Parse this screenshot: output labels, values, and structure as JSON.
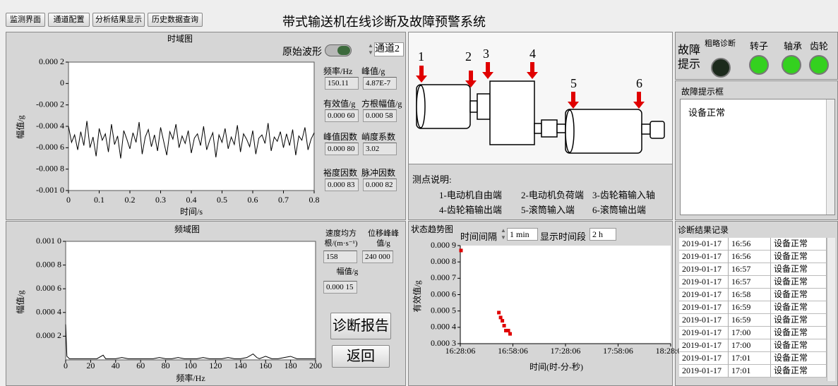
{
  "tabs": [
    "监测界面",
    "通道配置",
    "分析结果显示",
    "历史数据查询"
  ],
  "title": "带式输送机在线诊断及故障预警系统",
  "time_panel": {
    "toggle_label": "原始波形",
    "channel": "通道2",
    "indicators": [
      {
        "label": "频率/Hz",
        "value": "150.11"
      },
      {
        "label": "峰值/g",
        "value": "4.87E-7"
      },
      {
        "label": "有效值/g",
        "value": "0.000 60"
      },
      {
        "label": "方根幅值/g",
        "value": "0.000 58"
      },
      {
        "label": "峰值因数",
        "value": "0.000 80"
      },
      {
        "label": "峭度系数",
        "value": "3.02"
      },
      {
        "label": "裕度因数",
        "value": "0.000 83"
      },
      {
        "label": "脉冲因数",
        "value": "0.000 82"
      }
    ]
  },
  "freq_panel": {
    "indicators": [
      {
        "label": "速度均方根/(m·s⁻¹)",
        "value": "158"
      },
      {
        "label": "位移峰峰值/g",
        "value": "240 000"
      },
      {
        "label": "幅值/g",
        "value": "0.000 15"
      }
    ],
    "buttons": [
      "诊断报告",
      "返回"
    ]
  },
  "diagram": {
    "points": [
      "1",
      "2",
      "3",
      "4",
      "5",
      "6"
    ],
    "legend_title": "测点说明:",
    "legend": [
      "1-电动机自由端",
      "2-电动机负荷端",
      "3-齿轮箱输入轴",
      "4-齿轮箱输出端",
      "5-滚筒输入端",
      "6-滚筒输出端"
    ]
  },
  "trend_panel": {
    "interval_label": "时间间隔",
    "interval": "1 min",
    "period_label": "显示时间段",
    "period": "2 h"
  },
  "fault": {
    "title": "故障提示",
    "leds": [
      "粗略诊断",
      "转子",
      "轴承",
      "齿轮"
    ],
    "box_title": "故障提示框",
    "message": "设备正常"
  },
  "records": {
    "title": "诊断结果记录",
    "rows": [
      [
        "2019-01-17",
        "16:56",
        "设备正常"
      ],
      [
        "2019-01-17",
        "16:56",
        "设备正常"
      ],
      [
        "2019-01-17",
        "16:57",
        "设备正常"
      ],
      [
        "2019-01-17",
        "16:57",
        "设备正常"
      ],
      [
        "2019-01-17",
        "16:58",
        "设备正常"
      ],
      [
        "2019-01-17",
        "16:59",
        "设备正常"
      ],
      [
        "2019-01-17",
        "16:59",
        "设备正常"
      ],
      [
        "2019-01-17",
        "17:00",
        "设备正常"
      ],
      [
        "2019-01-17",
        "17:00",
        "设备正常"
      ],
      [
        "2019-01-17",
        "17:01",
        "设备正常"
      ],
      [
        "2019-01-17",
        "17:01",
        "设备正常"
      ]
    ]
  },
  "chart_data": [
    {
      "type": "line",
      "title": "时域图",
      "x_label": "时间/s",
      "y_label": "幅值/g",
      "x": [
        0,
        0.01,
        0.02,
        0.03,
        0.04,
        0.05,
        0.06,
        0.07,
        0.08,
        0.09,
        0.1,
        0.11,
        0.12,
        0.13,
        0.14,
        0.15,
        0.16,
        0.17,
        0.18,
        0.19,
        0.2,
        0.21,
        0.22,
        0.23,
        0.24,
        0.25,
        0.26,
        0.27,
        0.28,
        0.29,
        0.3,
        0.31,
        0.32,
        0.33,
        0.34,
        0.35,
        0.36,
        0.37,
        0.38,
        0.39,
        0.4,
        0.41,
        0.42,
        0.43,
        0.44,
        0.45,
        0.46,
        0.47,
        0.48,
        0.49,
        0.5,
        0.51,
        0.52,
        0.53,
        0.54,
        0.55,
        0.56,
        0.57,
        0.58,
        0.59,
        0.6,
        0.61,
        0.62,
        0.63,
        0.64,
        0.65,
        0.66,
        0.67,
        0.68,
        0.69,
        0.7,
        0.71,
        0.72,
        0.73,
        0.74,
        0.75,
        0.76,
        0.77,
        0.78,
        0.79,
        0.8
      ],
      "series": [
        {
          "color": "#000000",
          "values": [
            -0.0004,
            -0.00055,
            -0.00048,
            -0.00062,
            -0.00045,
            -0.00058,
            -0.00035,
            -0.0006,
            -0.0005,
            -0.00068,
            -0.00042,
            -0.00053,
            -0.00047,
            -0.00064,
            -0.00038,
            -0.00057,
            -0.00049,
            -0.0007,
            -0.00044,
            -0.00052,
            -0.00061,
            -0.00046,
            -0.00055,
            -0.00036,
            -0.00066,
            -0.0005,
            -0.00043,
            -0.00059,
            -0.00048,
            -0.00063,
            -0.00041,
            -0.00054,
            -0.00067,
            -0.00045,
            -0.00052,
            -0.00038,
            -0.0006,
            -0.00049,
            -0.00056,
            -0.00044,
            -0.00065,
            -0.00051,
            -0.00047,
            -0.00058,
            -0.0004,
            -0.00062,
            -0.00053,
            -0.00046,
            -0.00069,
            -0.00048,
            -0.00055,
            -0.00042,
            -0.00061,
            -0.0005,
            -0.00057,
            -0.00039,
            -0.00064,
            -0.00047,
            -0.00052,
            -0.00059,
            -0.00044,
            -0.00066,
            -0.00051,
            -0.00048,
            -0.00056,
            -0.00037,
            -0.00063,
            -0.0005,
            -0.00054,
            -0.00045,
            -0.0006,
            -0.00047,
            -0.00058,
            -0.00043,
            -0.00067,
            -0.00049,
            -0.00053,
            -0.00041,
            -0.00062,
            -0.00052,
            -0.00046
          ]
        }
      ],
      "xlim": [
        0,
        0.8
      ],
      "xticks": [
        0,
        0.1,
        0.2,
        0.3,
        0.4,
        0.5,
        0.6,
        0.7,
        0.8
      ],
      "ylim": [
        -0.001,
        0.0002
      ],
      "yticks": [
        {
          "value": 0.0002,
          "label": "0.000 2"
        },
        0,
        {
          "value": -0.0002,
          "label": "-0.000 2"
        },
        {
          "value": -0.0004,
          "label": "-0.000 4"
        },
        {
          "value": -0.0006,
          "label": "-0.000 6"
        },
        {
          "value": -0.0008,
          "label": "-0.000 8"
        },
        {
          "value": -0.001,
          "label": "-0.001 0"
        }
      ]
    },
    {
      "type": "line",
      "title": "频域图",
      "x_label": "频率/Hz",
      "y_label": "幅值/g",
      "x": [
        0,
        1,
        3,
        5,
        10,
        15,
        20,
        25,
        30,
        32,
        35,
        40,
        45,
        50,
        55,
        60,
        65,
        70,
        75,
        80,
        85,
        90,
        95,
        100,
        105,
        110,
        115,
        120,
        125,
        130,
        135,
        140,
        145,
        150,
        153,
        155,
        160,
        165,
        170,
        175,
        180,
        185,
        190,
        195,
        200
      ],
      "series": [
        {
          "color": "#000000",
          "values": [
            0.0003,
            3e-05,
            1e-05,
            1e-05,
            1e-05,
            1e-05,
            1e-05,
            1e-05,
            4e-05,
            1e-05,
            1e-05,
            1e-05,
            2e-05,
            1e-05,
            1e-05,
            1e-05,
            1e-05,
            1e-05,
            2e-05,
            1e-05,
            1e-05,
            2e-05,
            1e-05,
            1e-05,
            1e-05,
            2e-05,
            1e-05,
            1e-05,
            1e-05,
            2e-05,
            1e-05,
            1e-05,
            2e-05,
            5e-05,
            2e-05,
            1e-05,
            3e-05,
            1e-05,
            1e-05,
            2e-05,
            3e-05,
            1e-05,
            1e-05,
            1e-05,
            1e-05
          ]
        }
      ],
      "xlim": [
        0,
        200
      ],
      "xticks": [
        0,
        20,
        40,
        60,
        80,
        100,
        120,
        140,
        160,
        180,
        200
      ],
      "ylim": [
        0,
        0.001
      ],
      "yticks": [
        {
          "value": 0.001,
          "label": "0.001 0"
        },
        {
          "value": 0.0008,
          "label": "0.000 8"
        },
        {
          "value": 0.0006,
          "label": "0.000 6"
        },
        {
          "value": 0.0004,
          "label": "0.000 4"
        },
        {
          "value": 0.0002,
          "label": "0.000 2"
        }
      ]
    },
    {
      "type": "scatter",
      "title": "状态趋势图",
      "x_label": "时间(时-分-秒)",
      "y_label": "有效值/g",
      "x": [
        "16:28:30",
        "16:50:06",
        "16:51:06",
        "16:52:06",
        "16:53:06",
        "16:54:06",
        "16:55:30",
        "16:56:30"
      ],
      "series": [
        {
          "color": "#e00000",
          "values": [
            0.00087,
            0.00049,
            0.00046,
            0.00044,
            0.00041,
            0.00038,
            0.00038,
            0.00036
          ]
        }
      ],
      "xlim": [
        "16:28:06",
        "18:28:06"
      ],
      "xticks": [
        "16:28:06",
        "16:58:06",
        "17:28:06",
        "17:58:06",
        "18:28:06"
      ],
      "ylim": [
        0.0003,
        0.0009
      ],
      "yticks": [
        {
          "value": 0.0009,
          "label": "0.000 9"
        },
        {
          "value": 0.0008,
          "label": "0.000 8"
        },
        {
          "value": 0.0007,
          "label": "0.000 7"
        },
        {
          "value": 0.0006,
          "label": "0.000 6"
        },
        {
          "value": 0.0005,
          "label": "0.000 5"
        },
        {
          "value": 0.0004,
          "label": "0.000 4"
        },
        {
          "value": 0.0003,
          "label": "0.000 3"
        }
      ]
    }
  ]
}
